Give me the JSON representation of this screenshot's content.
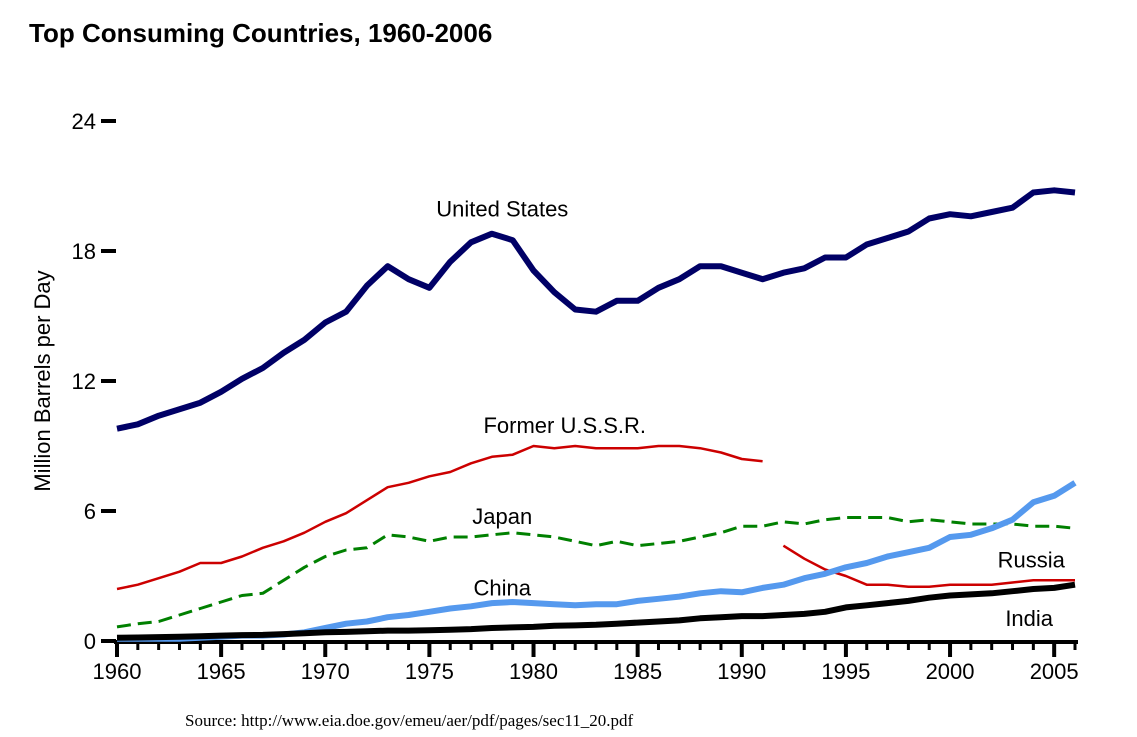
{
  "chart_data": {
    "type": "line",
    "title": "Top Consuming Countries, 1960-2006",
    "xlabel": "",
    "ylabel": "Million Barrels per Day",
    "source": "Source: http://www.eia.doe.gov/emeu/aer/pdf/pages/sec11_20.pdf",
    "xlim": [
      1960,
      2006
    ],
    "ylim": [
      0,
      24
    ],
    "x_ticks": [
      1960,
      1965,
      1970,
      1975,
      1980,
      1985,
      1990,
      1995,
      2000,
      2005
    ],
    "y_ticks": [
      0,
      6,
      12,
      18,
      24
    ],
    "grid": false,
    "legend": "inline labels",
    "series": [
      {
        "name": "United States",
        "color": "#000066",
        "style": "solid-thick",
        "label_pos": [
          1978.5,
          19.6
        ],
        "x": [
          1960,
          1961,
          1962,
          1963,
          1964,
          1965,
          1966,
          1967,
          1968,
          1969,
          1970,
          1971,
          1972,
          1973,
          1974,
          1975,
          1976,
          1977,
          1978,
          1979,
          1980,
          1981,
          1982,
          1983,
          1984,
          1985,
          1986,
          1987,
          1988,
          1989,
          1990,
          1991,
          1992,
          1993,
          1994,
          1995,
          1996,
          1997,
          1998,
          1999,
          2000,
          2001,
          2002,
          2003,
          2004,
          2005,
          2006
        ],
        "values": [
          9.8,
          10.0,
          10.4,
          10.7,
          11.0,
          11.5,
          12.1,
          12.6,
          13.3,
          13.9,
          14.7,
          15.2,
          16.4,
          17.3,
          16.7,
          16.3,
          17.5,
          18.4,
          18.8,
          18.5,
          17.1,
          16.1,
          15.3,
          15.2,
          15.7,
          15.7,
          16.3,
          16.7,
          17.3,
          17.3,
          17.0,
          16.7,
          17.0,
          17.2,
          17.7,
          17.7,
          18.3,
          18.6,
          18.9,
          19.5,
          19.7,
          19.6,
          19.8,
          20.0,
          20.7,
          20.8,
          20.7
        ]
      },
      {
        "name": "Former U.S.S.R.",
        "color": "#CC0000",
        "style": "solid-thin",
        "label_pos": [
          1981.5,
          9.6
        ],
        "x": [
          1960,
          1961,
          1962,
          1963,
          1964,
          1965,
          1966,
          1967,
          1968,
          1969,
          1970,
          1971,
          1972,
          1973,
          1974,
          1975,
          1976,
          1977,
          1978,
          1979,
          1980,
          1981,
          1982,
          1983,
          1984,
          1985,
          1986,
          1987,
          1988,
          1989,
          1990,
          1991
        ],
        "values": [
          2.4,
          2.6,
          2.9,
          3.2,
          3.6,
          3.6,
          3.9,
          4.3,
          4.6,
          5.0,
          5.5,
          5.9,
          6.5,
          7.1,
          7.3,
          7.6,
          7.8,
          8.2,
          8.5,
          8.6,
          9.0,
          8.9,
          9.0,
          8.9,
          8.9,
          8.9,
          9.0,
          9.0,
          8.9,
          8.7,
          8.4,
          8.3
        ]
      },
      {
        "name": "Russia",
        "color": "#CC0000",
        "style": "solid-thin",
        "label_pos": [
          2003.9,
          3.4
        ],
        "x": [
          1992,
          1993,
          1994,
          1995,
          1996,
          1997,
          1998,
          1999,
          2000,
          2001,
          2002,
          2003,
          2004,
          2005,
          2006
        ],
        "values": [
          4.4,
          3.8,
          3.3,
          3.0,
          2.6,
          2.6,
          2.5,
          2.5,
          2.6,
          2.6,
          2.6,
          2.7,
          2.8,
          2.8,
          2.8
        ]
      },
      {
        "name": "Japan",
        "color": "#008000",
        "style": "dashed",
        "label_pos": [
          1978.5,
          5.4
        ],
        "x": [
          1960,
          1961,
          1962,
          1963,
          1964,
          1965,
          1966,
          1967,
          1968,
          1969,
          1970,
          1971,
          1972,
          1973,
          1974,
          1975,
          1976,
          1977,
          1978,
          1979,
          1980,
          1981,
          1982,
          1983,
          1984,
          1985,
          1986,
          1987,
          1988,
          1989,
          1990,
          1991,
          1992,
          1993,
          1994,
          1995,
          1996,
          1997,
          1998,
          1999,
          2000,
          2001,
          2002,
          2003,
          2004,
          2005,
          2006
        ],
        "values": [
          0.65,
          0.8,
          0.9,
          1.2,
          1.5,
          1.8,
          2.1,
          2.2,
          2.8,
          3.4,
          3.9,
          4.2,
          4.3,
          4.9,
          4.8,
          4.6,
          4.8,
          4.8,
          4.9,
          5.0,
          4.9,
          4.8,
          4.6,
          4.4,
          4.6,
          4.4,
          4.5,
          4.6,
          4.8,
          5.0,
          5.3,
          5.3,
          5.5,
          5.4,
          5.6,
          5.7,
          5.7,
          5.7,
          5.5,
          5.6,
          5.5,
          5.4,
          5.4,
          5.4,
          5.3,
          5.3,
          5.2
        ]
      },
      {
        "name": "China",
        "color": "#5599EE",
        "style": "solid-thick",
        "label_pos": [
          1978.5,
          2.1
        ],
        "x": [
          1960,
          1961,
          1962,
          1963,
          1964,
          1965,
          1966,
          1967,
          1968,
          1969,
          1970,
          1971,
          1972,
          1973,
          1974,
          1975,
          1976,
          1977,
          1978,
          1979,
          1980,
          1981,
          1982,
          1983,
          1984,
          1985,
          1986,
          1987,
          1988,
          1989,
          1990,
          1991,
          1992,
          1993,
          1994,
          1995,
          1996,
          1997,
          1998,
          1999,
          2000,
          2001,
          2002,
          2003,
          2004,
          2005,
          2006
        ],
        "values": [
          0.1,
          0.1,
          0.1,
          0.1,
          0.15,
          0.2,
          0.25,
          0.25,
          0.3,
          0.4,
          0.6,
          0.8,
          0.9,
          1.1,
          1.2,
          1.35,
          1.5,
          1.6,
          1.75,
          1.8,
          1.75,
          1.7,
          1.65,
          1.7,
          1.7,
          1.85,
          1.95,
          2.05,
          2.2,
          2.3,
          2.25,
          2.45,
          2.6,
          2.9,
          3.1,
          3.4,
          3.6,
          3.9,
          4.1,
          4.3,
          4.8,
          4.9,
          5.2,
          5.6,
          6.4,
          6.7,
          7.3
        ]
      },
      {
        "name": "India",
        "color": "#000000",
        "style": "solid-thick",
        "label_pos": [
          2003.8,
          0.7
        ],
        "x": [
          1960,
          1961,
          1962,
          1963,
          1964,
          1965,
          1966,
          1967,
          1968,
          1969,
          1970,
          1971,
          1972,
          1973,
          1974,
          1975,
          1976,
          1977,
          1978,
          1979,
          1980,
          1981,
          1982,
          1983,
          1984,
          1985,
          1986,
          1987,
          1988,
          1989,
          1990,
          1991,
          1992,
          1993,
          1994,
          1995,
          1996,
          1997,
          1998,
          1999,
          2000,
          2001,
          2002,
          2003,
          2004,
          2005,
          2006
        ],
        "values": [
          0.15,
          0.16,
          0.18,
          0.2,
          0.22,
          0.25,
          0.27,
          0.28,
          0.32,
          0.36,
          0.4,
          0.42,
          0.45,
          0.48,
          0.48,
          0.5,
          0.52,
          0.55,
          0.6,
          0.63,
          0.65,
          0.7,
          0.72,
          0.75,
          0.8,
          0.85,
          0.9,
          0.95,
          1.05,
          1.1,
          1.15,
          1.15,
          1.2,
          1.25,
          1.35,
          1.55,
          1.65,
          1.75,
          1.85,
          2.0,
          2.1,
          2.15,
          2.2,
          2.3,
          2.4,
          2.45,
          2.6
        ]
      }
    ]
  }
}
